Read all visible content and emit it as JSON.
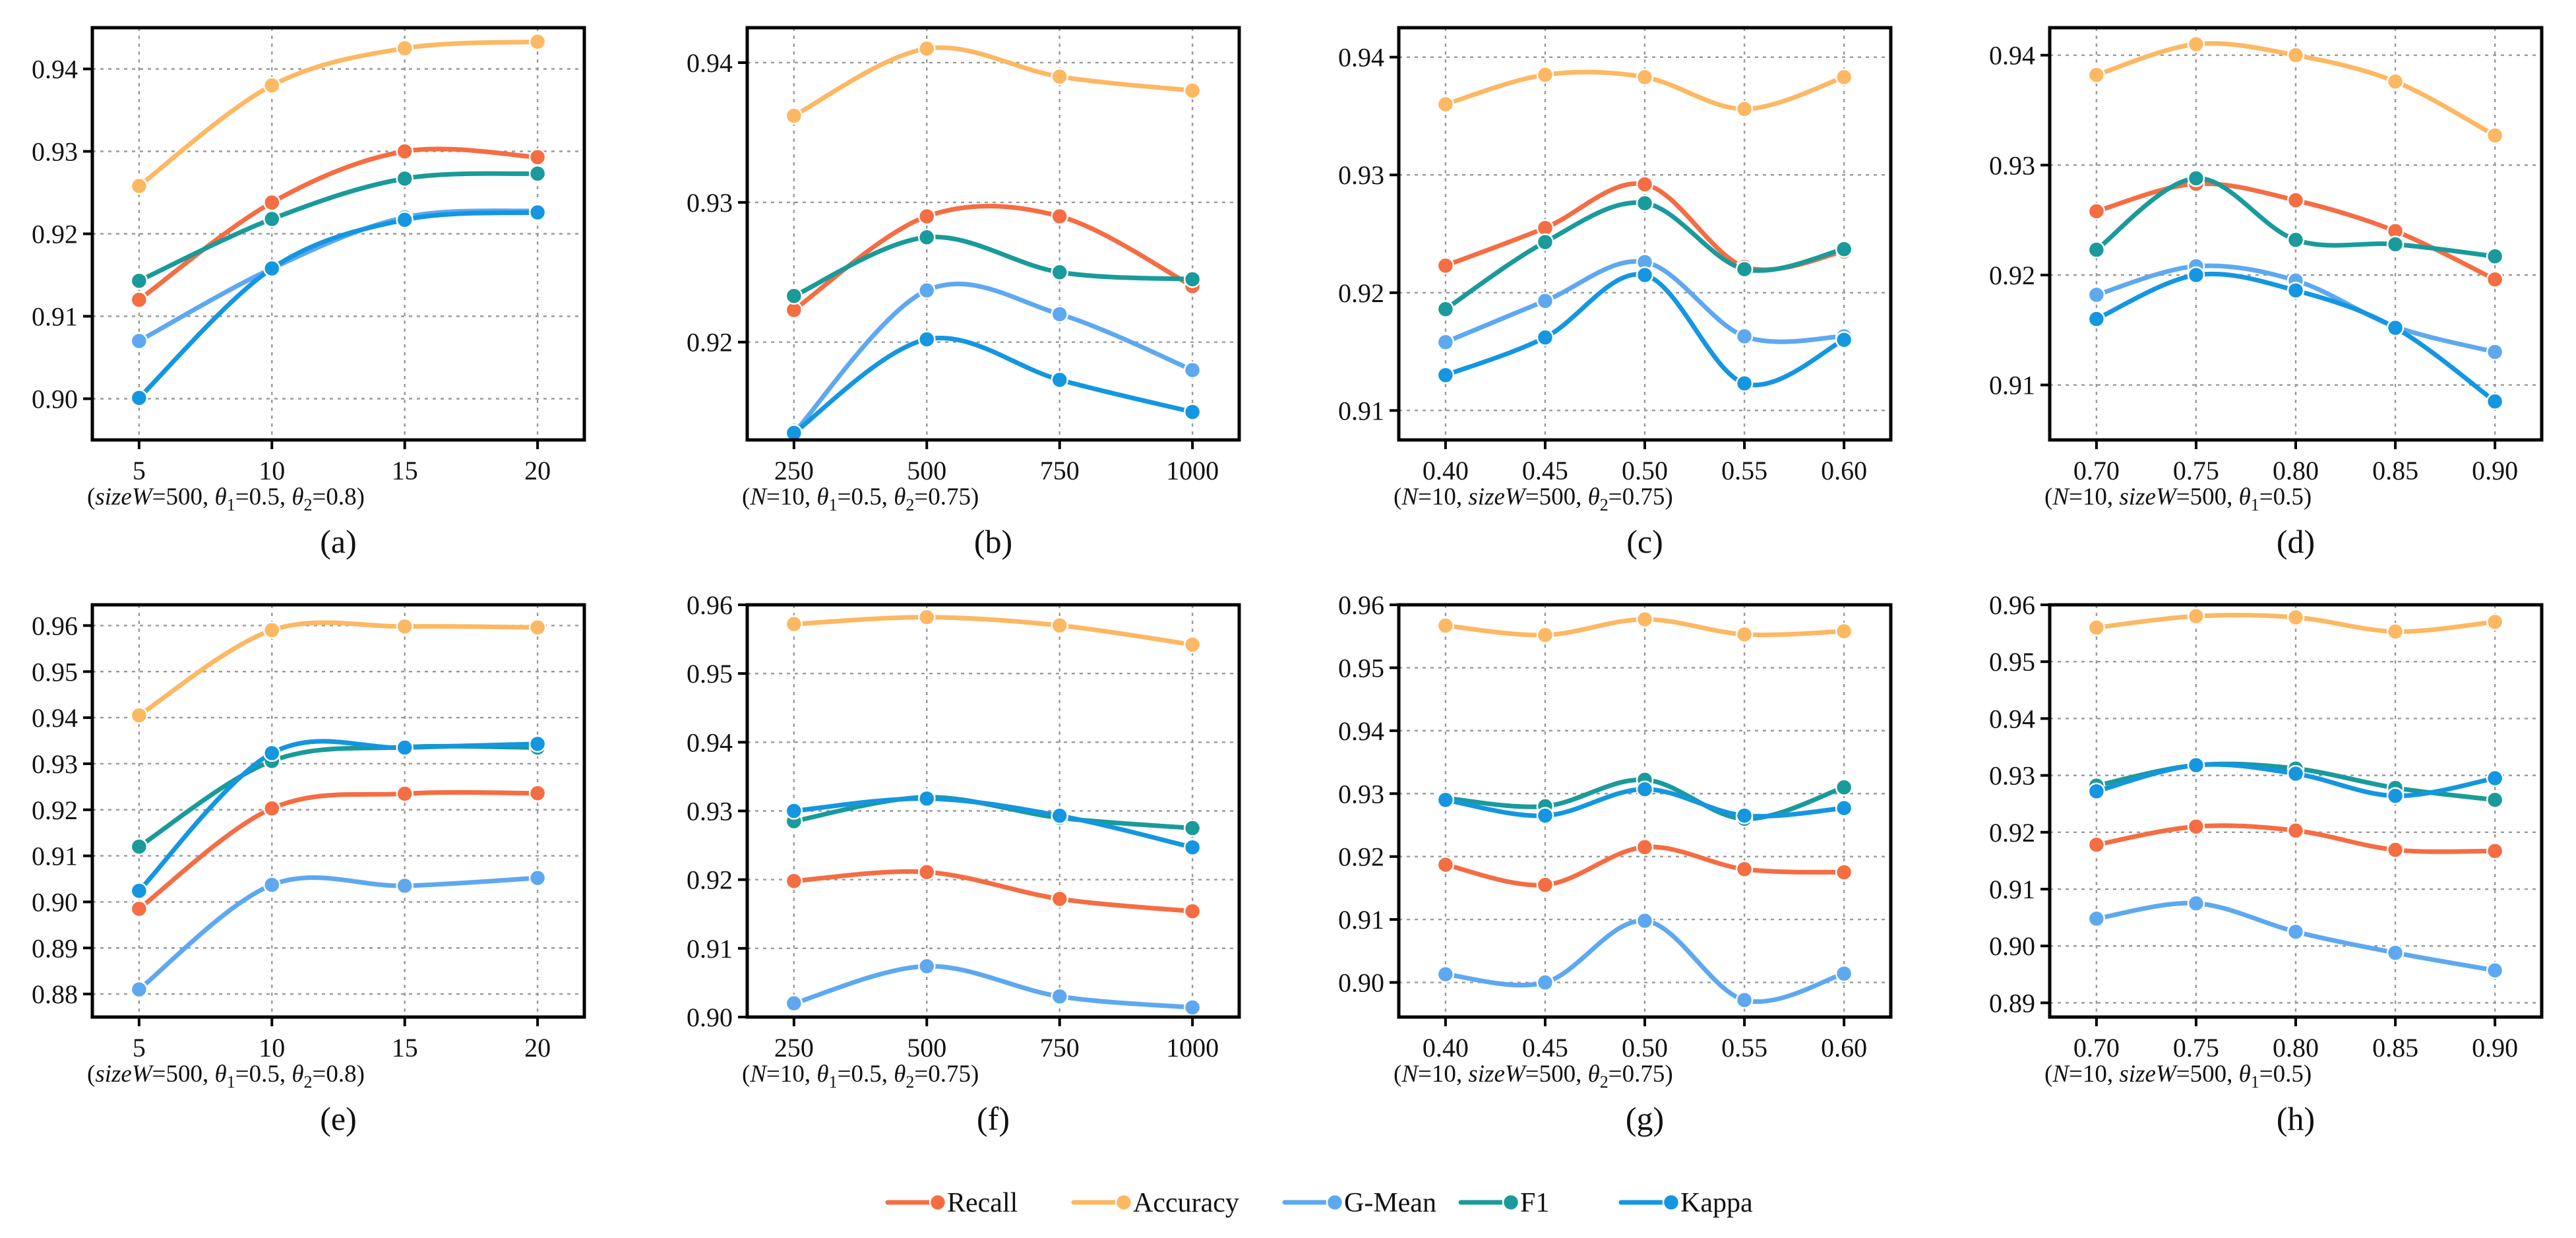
{
  "colors": {
    "Recall": "#f46d43",
    "Accuracy": "#fdb863",
    "G-Mean": "#5ea8f0",
    "F1": "#1a9a9a",
    "Kappa": "#1496e0"
  },
  "legend": [
    "Recall",
    "Accuracy",
    "G-Mean",
    "F1",
    "Kappa"
  ],
  "chart_data": [
    {
      "type": "line",
      "label": "(a)",
      "x": [
        5,
        10,
        15,
        20
      ],
      "xticks": [
        "5",
        "10",
        "15",
        "20"
      ],
      "ylim": [
        0.895,
        0.945
      ],
      "yticks": [
        "0.90",
        "0.91",
        "0.92",
        "0.93",
        "0.94"
      ],
      "caption_parts": [
        [
          "(",
          "n"
        ],
        [
          "sizeW",
          "i"
        ],
        [
          "=500, ",
          "n"
        ],
        [
          "θ",
          "i"
        ],
        [
          "1",
          "sub"
        ],
        [
          "=0.5, ",
          "n"
        ],
        [
          "θ",
          "i"
        ],
        [
          "2",
          "sub"
        ],
        [
          "=0.8)",
          "n"
        ]
      ],
      "series": [
        {
          "name": "Recall",
          "values": [
            0.912,
            0.9238,
            0.93,
            0.9293
          ]
        },
        {
          "name": "Accuracy",
          "values": [
            0.9258,
            0.938,
            0.9425,
            0.9433
          ]
        },
        {
          "name": "G-Mean",
          "values": [
            0.907,
            0.9158,
            0.922,
            0.9228
          ]
        },
        {
          "name": "F1",
          "values": [
            0.9143,
            0.9218,
            0.9267,
            0.9273
          ]
        },
        {
          "name": "Kappa",
          "values": [
            0.9001,
            0.9158,
            0.9217,
            0.9226
          ]
        }
      ]
    },
    {
      "type": "line",
      "label": "(b)",
      "x": [
        250,
        500,
        750,
        1000
      ],
      "xticks": [
        "250",
        "500",
        "750",
        "1000"
      ],
      "ylim": [
        0.913,
        0.9425
      ],
      "yticks": [
        "0.92",
        "0.93",
        "0.94"
      ],
      "caption_parts": [
        [
          "(",
          "n"
        ],
        [
          "N",
          "i"
        ],
        [
          "=10, ",
          "n"
        ],
        [
          "θ",
          "i"
        ],
        [
          "1",
          "sub"
        ],
        [
          "=0.5, ",
          "n"
        ],
        [
          "θ",
          "i"
        ],
        [
          "2",
          "sub"
        ],
        [
          "=0.75)",
          "n"
        ]
      ],
      "series": [
        {
          "name": "Recall",
          "values": [
            0.9223,
            0.929,
            0.929,
            0.924
          ]
        },
        {
          "name": "Accuracy",
          "values": [
            0.9362,
            0.941,
            0.939,
            0.938
          ]
        },
        {
          "name": "G-Mean",
          "values": [
            0.9135,
            0.9237,
            0.922,
            0.918
          ]
        },
        {
          "name": "F1",
          "values": [
            0.9233,
            0.9275,
            0.925,
            0.9245
          ]
        },
        {
          "name": "Kappa",
          "values": [
            0.9135,
            0.9202,
            0.9173,
            0.915
          ]
        }
      ]
    },
    {
      "type": "line",
      "label": "(c)",
      "x": [
        0.4,
        0.45,
        0.5,
        0.55,
        0.6
      ],
      "xticks": [
        "0.40",
        "0.45",
        "0.50",
        "0.55",
        "0.60"
      ],
      "ylim": [
        0.9075,
        0.9425
      ],
      "yticks": [
        "0.91",
        "0.92",
        "0.93",
        "0.94"
      ],
      "caption_parts": [
        [
          "(",
          "n"
        ],
        [
          "N",
          "i"
        ],
        [
          "=10, ",
          "n"
        ],
        [
          "sizeW",
          "i"
        ],
        [
          "=500, ",
          "n"
        ],
        [
          "θ",
          "i"
        ],
        [
          "2",
          "sub"
        ],
        [
          "=0.75)",
          "n"
        ]
      ],
      "series": [
        {
          "name": "Recall",
          "values": [
            0.9223,
            0.9255,
            0.9292,
            0.9222,
            0.9235
          ]
        },
        {
          "name": "Accuracy",
          "values": [
            0.936,
            0.9385,
            0.9383,
            0.9356,
            0.9383
          ]
        },
        {
          "name": "G-Mean",
          "values": [
            0.9158,
            0.9193,
            0.9226,
            0.9163,
            0.9163
          ]
        },
        {
          "name": "F1",
          "values": [
            0.9186,
            0.9243,
            0.9276,
            0.922,
            0.9237
          ]
        },
        {
          "name": "Kappa",
          "values": [
            0.913,
            0.9162,
            0.9215,
            0.9123,
            0.916
          ]
        }
      ]
    },
    {
      "type": "line",
      "label": "(d)",
      "x": [
        0.7,
        0.75,
        0.8,
        0.85,
        0.9
      ],
      "xticks": [
        "0.70",
        "0.75",
        "0.80",
        "0.85",
        "0.90"
      ],
      "ylim": [
        0.905,
        0.9425
      ],
      "yticks": [
        "0.91",
        "0.92",
        "0.93",
        "0.94"
      ],
      "caption_parts": [
        [
          "(",
          "n"
        ],
        [
          "N",
          "i"
        ],
        [
          "=10, ",
          "n"
        ],
        [
          "sizeW",
          "i"
        ],
        [
          "=500, ",
          "n"
        ],
        [
          "θ",
          "i"
        ],
        [
          "1",
          "sub"
        ],
        [
          "=0.5)",
          "n"
        ]
      ],
      "series": [
        {
          "name": "Recall",
          "values": [
            0.9258,
            0.9283,
            0.9268,
            0.924,
            0.9196
          ]
        },
        {
          "name": "Accuracy",
          "values": [
            0.9382,
            0.941,
            0.94,
            0.9376,
            0.9327
          ]
        },
        {
          "name": "G-Mean",
          "values": [
            0.9182,
            0.9208,
            0.9195,
            0.9153,
            0.913
          ]
        },
        {
          "name": "F1",
          "values": [
            0.9223,
            0.9288,
            0.9232,
            0.9228,
            0.9217
          ]
        },
        {
          "name": "Kappa",
          "values": [
            0.916,
            0.92,
            0.9186,
            0.9152,
            0.9085
          ]
        }
      ]
    },
    {
      "type": "line",
      "label": "(e)",
      "x": [
        5,
        10,
        15,
        20
      ],
      "xticks": [
        "5",
        "10",
        "15",
        "20"
      ],
      "ylim": [
        0.875,
        0.9645
      ],
      "yticks": [
        "0.88",
        "0.89",
        "0.90",
        "0.91",
        "0.92",
        "0.93",
        "0.94",
        "0.95",
        "0.96"
      ],
      "caption_parts": [
        [
          "(",
          "n"
        ],
        [
          "sizeW",
          "i"
        ],
        [
          "=500, ",
          "n"
        ],
        [
          "θ",
          "i"
        ],
        [
          "1",
          "sub"
        ],
        [
          "=0.5, ",
          "n"
        ],
        [
          "θ",
          "i"
        ],
        [
          "2",
          "sub"
        ],
        [
          "=0.8)",
          "n"
        ]
      ],
      "series": [
        {
          "name": "Recall",
          "values": [
            0.8985,
            0.9203,
            0.9235,
            0.9236
          ]
        },
        {
          "name": "Accuracy",
          "values": [
            0.9405,
            0.959,
            0.9598,
            0.9596
          ]
        },
        {
          "name": "G-Mean",
          "values": [
            0.881,
            0.9037,
            0.9035,
            0.9052
          ]
        },
        {
          "name": "F1",
          "values": [
            0.912,
            0.9306,
            0.9336,
            0.9335
          ]
        },
        {
          "name": "Kappa",
          "values": [
            0.9024,
            0.9323,
            0.9335,
            0.9343
          ]
        }
      ]
    },
    {
      "type": "line",
      "label": "(f)",
      "x": [
        250,
        500,
        750,
        1000
      ],
      "xticks": [
        "250",
        "500",
        "750",
        "1000"
      ],
      "ylim": [
        0.9,
        0.96
      ],
      "yticks": [
        "0.90",
        "0.91",
        "0.92",
        "0.93",
        "0.94",
        "0.95",
        "0.96"
      ],
      "caption_parts": [
        [
          "(",
          "n"
        ],
        [
          "N",
          "i"
        ],
        [
          "=10, ",
          "n"
        ],
        [
          "θ",
          "i"
        ],
        [
          "1",
          "sub"
        ],
        [
          "=0.5, ",
          "n"
        ],
        [
          "θ",
          "i"
        ],
        [
          "2",
          "sub"
        ],
        [
          "=0.75)",
          "n"
        ]
      ],
      "series": [
        {
          "name": "Recall",
          "values": [
            0.9198,
            0.9211,
            0.9172,
            0.9154
          ]
        },
        {
          "name": "Accuracy",
          "values": [
            0.9572,
            0.9582,
            0.957,
            0.9542
          ]
        },
        {
          "name": "G-Mean",
          "values": [
            0.902,
            0.9074,
            0.903,
            0.9014
          ]
        },
        {
          "name": "F1",
          "values": [
            0.9285,
            0.932,
            0.929,
            0.9275
          ]
        },
        {
          "name": "Kappa",
          "values": [
            0.93,
            0.9318,
            0.9293,
            0.9247
          ]
        }
      ]
    },
    {
      "type": "line",
      "label": "(g)",
      "x": [
        0.4,
        0.45,
        0.5,
        0.55,
        0.6
      ],
      "xticks": [
        "0.40",
        "0.45",
        "0.50",
        "0.55",
        "0.60"
      ],
      "ylim": [
        0.8945,
        0.96
      ],
      "yticks": [
        "0.90",
        "0.91",
        "0.92",
        "0.93",
        "0.94",
        "0.95",
        "0.96"
      ],
      "caption_parts": [
        [
          "(",
          "n"
        ],
        [
          "N",
          "i"
        ],
        [
          "=10, ",
          "n"
        ],
        [
          "sizeW",
          "i"
        ],
        [
          "=500, ",
          "n"
        ],
        [
          "θ",
          "i"
        ],
        [
          "2",
          "sub"
        ],
        [
          "=0.75)",
          "n"
        ]
      ],
      "series": [
        {
          "name": "Recall",
          "values": [
            0.9187,
            0.9155,
            0.9215,
            0.918,
            0.9175
          ]
        },
        {
          "name": "Accuracy",
          "values": [
            0.9567,
            0.9552,
            0.9577,
            0.9553,
            0.9558
          ]
        },
        {
          "name": "G-Mean",
          "values": [
            0.9013,
            0.9,
            0.9098,
            0.8972,
            0.9014
          ]
        },
        {
          "name": "F1",
          "values": [
            0.9293,
            0.928,
            0.9322,
            0.926,
            0.931
          ]
        },
        {
          "name": "Kappa",
          "values": [
            0.929,
            0.9265,
            0.9307,
            0.9265,
            0.9277
          ]
        }
      ]
    },
    {
      "type": "line",
      "label": "(h)",
      "x": [
        0.7,
        0.75,
        0.8,
        0.85,
        0.9
      ],
      "xticks": [
        "0.70",
        "0.75",
        "0.80",
        "0.85",
        "0.90"
      ],
      "ylim": [
        0.8875,
        0.96
      ],
      "yticks": [
        "0.89",
        "0.90",
        "0.91",
        "0.92",
        "0.93",
        "0.94",
        "0.95",
        "0.96"
      ],
      "caption_parts": [
        [
          "(",
          "n"
        ],
        [
          "N",
          "i"
        ],
        [
          "=10, ",
          "n"
        ],
        [
          "sizeW",
          "i"
        ],
        [
          "=500, ",
          "n"
        ],
        [
          "θ",
          "i"
        ],
        [
          "1",
          "sub"
        ],
        [
          "=0.5)",
          "n"
        ]
      ],
      "series": [
        {
          "name": "Recall",
          "values": [
            0.9178,
            0.921,
            0.9203,
            0.9169,
            0.9167
          ]
        },
        {
          "name": "Accuracy",
          "values": [
            0.956,
            0.958,
            0.9578,
            0.9553,
            0.957
          ]
        },
        {
          "name": "G-Mean",
          "values": [
            0.9048,
            0.9075,
            0.9025,
            0.8988,
            0.8957
          ]
        },
        {
          "name": "F1",
          "values": [
            0.9282,
            0.9318,
            0.9312,
            0.9278,
            0.9257
          ]
        },
        {
          "name": "Kappa",
          "values": [
            0.9272,
            0.9318,
            0.9303,
            0.9264,
            0.9295
          ]
        }
      ]
    }
  ]
}
